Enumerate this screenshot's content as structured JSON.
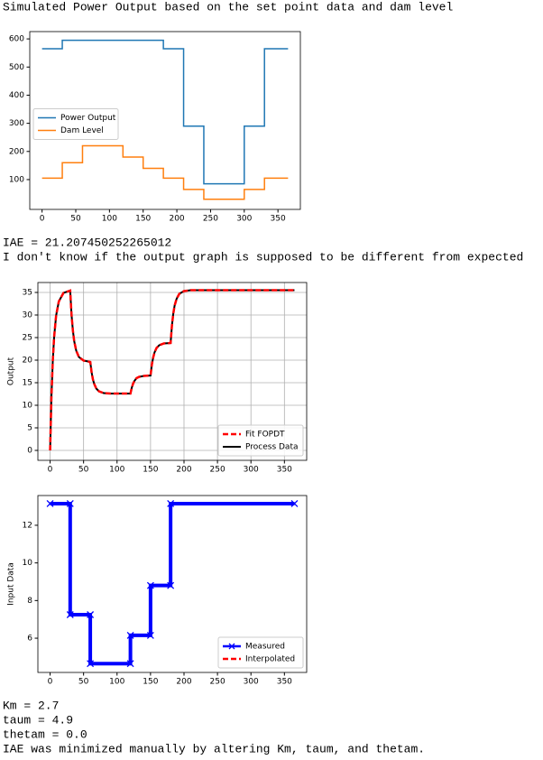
{
  "text_lines": {
    "heading": "Simulated Power Output based on the set point data and dam level",
    "iae": "IAE = 21.207450252265012",
    "question": "I don't know if the output graph is supposed to be different from expected",
    "km": "Km = 2.7",
    "taum": "taum = 4.9",
    "thetam": "thetam = 0.0",
    "note": "IAE was minimized manually by altering Km, taum, and thetam."
  },
  "chart_data": [
    {
      "type": "line",
      "xlim": [
        -18.25,
        383.25
      ],
      "ylim": [
        -6,
        626
      ],
      "xticks": [
        0,
        50,
        100,
        150,
        200,
        250,
        300,
        350
      ],
      "yticks": [
        100,
        200,
        300,
        400,
        500,
        600
      ],
      "grid": false,
      "legend": "center left",
      "series": [
        {
          "name": "Power Output",
          "color": "#1f77b4",
          "width": 1.5,
          "x": [
            0,
            30,
            30,
            180,
            180,
            210,
            210,
            240,
            240,
            300,
            300,
            330,
            330,
            365
          ],
          "values": [
            565,
            565,
            595,
            595,
            565,
            565,
            290,
            290,
            85,
            85,
            290,
            290,
            565,
            565
          ]
        },
        {
          "name": "Dam Level",
          "color": "#ff7f0e",
          "width": 1.5,
          "x": [
            0,
            30,
            30,
            60,
            60,
            120,
            120,
            150,
            150,
            180,
            180,
            210,
            210,
            240,
            240,
            300,
            300,
            330,
            330,
            365
          ],
          "values": [
            105,
            105,
            160,
            160,
            220,
            220,
            180,
            180,
            140,
            140,
            105,
            105,
            65,
            65,
            30,
            30,
            65,
            65,
            105,
            105
          ]
        }
      ]
    },
    {
      "type": "line",
      "ylabel": "Output",
      "xlim": [
        -18.25,
        383.25
      ],
      "ylim": [
        -2.2,
        37.2
      ],
      "xticks": [
        0,
        50,
        100,
        150,
        200,
        250,
        300,
        350
      ],
      "yticks": [
        0,
        5,
        10,
        15,
        20,
        25,
        30,
        35
      ],
      "grid": true,
      "legend": "lower right",
      "series": [
        {
          "name": "Fit FOPDT",
          "color": "#ff0000",
          "width": 2.5,
          "style": "dashed",
          "x": [
            0,
            2,
            4,
            6,
            9,
            13,
            20,
            30,
            32,
            34,
            36,
            39,
            43,
            50,
            60,
            62,
            64,
            66,
            69,
            73,
            80,
            90,
            120,
            122,
            124,
            126,
            129,
            133,
            140,
            150,
            152,
            154,
            156,
            159,
            163,
            170,
            180,
            182,
            184,
            186,
            189,
            193,
            200,
            210,
            365
          ],
          "values": [
            0,
            11.9,
            19.8,
            25.1,
            29.9,
            33.0,
            34.9,
            35.4,
            30.1,
            26.6,
            24.2,
            22.1,
            20.7,
            19.9,
            19.6,
            17.3,
            15.7,
            14.7,
            13.7,
            13.1,
            12.7,
            12.6,
            12.6,
            13.9,
            14.8,
            15.4,
            16.0,
            16.3,
            16.5,
            16.6,
            19.0,
            20.6,
            21.7,
            22.7,
            23.3,
            23.7,
            23.8,
            27.7,
            30.3,
            32.1,
            33.6,
            34.7,
            35.3,
            35.5,
            35.5
          ]
        },
        {
          "name": "Process Data",
          "color": "#000000",
          "width": 2,
          "x": [
            0,
            2,
            4,
            6,
            9,
            13,
            20,
            30,
            32,
            34,
            36,
            39,
            43,
            50,
            60,
            62,
            64,
            66,
            69,
            73,
            80,
            90,
            120,
            122,
            124,
            126,
            129,
            133,
            140,
            150,
            152,
            154,
            156,
            159,
            163,
            170,
            180,
            182,
            184,
            186,
            189,
            193,
            200,
            210,
            365
          ],
          "values": [
            0,
            11.9,
            19.8,
            25.1,
            29.9,
            33.0,
            34.9,
            35.4,
            30.1,
            26.6,
            24.2,
            22.1,
            20.7,
            19.9,
            19.6,
            17.3,
            15.7,
            14.7,
            13.7,
            13.1,
            12.7,
            12.6,
            12.6,
            13.9,
            14.8,
            15.4,
            16.0,
            16.3,
            16.5,
            16.6,
            19.0,
            20.6,
            21.7,
            22.7,
            23.3,
            23.7,
            23.8,
            27.7,
            30.3,
            32.1,
            33.6,
            34.7,
            35.3,
            35.5,
            35.5
          ]
        }
      ]
    },
    {
      "type": "line",
      "ylabel": "Input Data",
      "xlim": [
        -18.25,
        383.25
      ],
      "ylim": [
        4.18,
        13.58
      ],
      "xticks": [
        0,
        50,
        100,
        150,
        200,
        250,
        300,
        350
      ],
      "yticks": [
        6,
        8,
        10,
        12
      ],
      "grid": false,
      "legend": "lower right",
      "series": [
        {
          "name": "Measured",
          "color": "#0000ff",
          "width": 4,
          "marker": "x",
          "x": [
            0,
            30,
            30,
            60,
            60,
            120,
            120,
            150,
            150,
            180,
            180,
            365
          ],
          "values": [
            13.15,
            13.15,
            7.25,
            7.25,
            4.65,
            4.65,
            6.15,
            6.15,
            8.8,
            8.8,
            13.15,
            13.15
          ]
        },
        {
          "name": "Interpolated",
          "color": "#ff0000",
          "width": 2.5,
          "style": "dashed",
          "x": [
            0,
            30,
            30,
            60,
            60,
            120,
            120,
            150,
            150,
            180,
            180,
            365
          ],
          "values": [
            13.15,
            13.15,
            7.25,
            7.25,
            4.65,
            4.65,
            6.15,
            6.15,
            8.8,
            8.8,
            13.15,
            13.15
          ]
        }
      ]
    }
  ]
}
